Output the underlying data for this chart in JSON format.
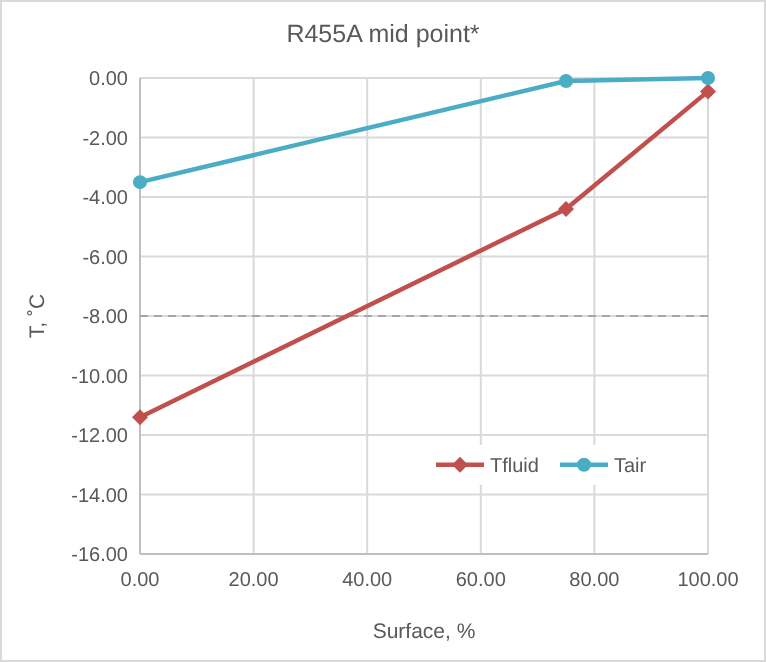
{
  "chart_data": {
    "type": "line",
    "title": "R455A mid point*",
    "xlabel": "Surface, %",
    "ylabel": "T, ˚C",
    "xlim": [
      0,
      100
    ],
    "xticks": [
      {
        "value": 0,
        "label": "0.00"
      },
      {
        "value": 20,
        "label": "20.00"
      },
      {
        "value": 40,
        "label": "40.00"
      },
      {
        "value": 60,
        "label": "60.00"
      },
      {
        "value": 80,
        "label": "80.00"
      },
      {
        "value": 100,
        "label": "100.00"
      }
    ],
    "ylim": [
      -16,
      0
    ],
    "yticks": [
      {
        "value": -16,
        "label": "-16.00"
      },
      {
        "value": -14,
        "label": "-14.00"
      },
      {
        "value": -12,
        "label": "-12.00"
      },
      {
        "value": -10,
        "label": "-10.00"
      },
      {
        "value": -8,
        "label": "-8.00"
      },
      {
        "value": -6,
        "label": "-6.00"
      },
      {
        "value": -4,
        "label": "-4.00"
      },
      {
        "value": -2,
        "label": "-2.00"
      },
      {
        "value": 0,
        "label": "0.00"
      }
    ],
    "x": [
      0,
      75,
      100
    ],
    "series": [
      {
        "name": "Tfluid",
        "color": "#c0504d",
        "values": [
          -11.4,
          -4.4,
          -0.45
        ],
        "marker": "diamond"
      },
      {
        "name": "Tair",
        "color": "#4bacc6",
        "values": [
          -3.5,
          -0.1,
          0
        ],
        "marker": "circle"
      }
    ],
    "ref_lines": [
      {
        "axis": "y",
        "value": -8,
        "color": "#a6a6a6",
        "line_style": "dashed"
      }
    ],
    "grid": true,
    "legend": "bottom right",
    "line_style": "solid"
  }
}
